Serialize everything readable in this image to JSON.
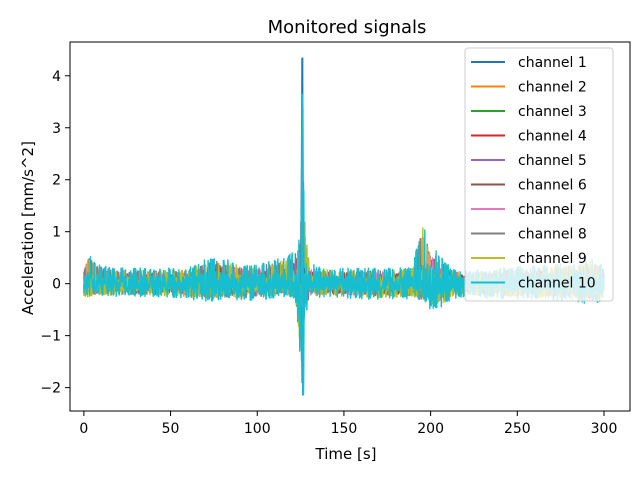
{
  "chart_data": {
    "type": "line",
    "title": "Monitored signals",
    "xlabel": "Time [s]",
    "ylabel": "Acceleration [mm/s^2]",
    "xlim": [
      -8,
      315
    ],
    "ylim": [
      -2.45,
      4.65
    ],
    "x_ticks": [
      0,
      50,
      100,
      150,
      200,
      250,
      300
    ],
    "y_ticks": [
      -2,
      -1,
      0,
      1,
      2,
      3,
      4
    ],
    "grid": false,
    "legend_position": "top-right",
    "series": [
      {
        "name": "channel 1",
        "color": "#1f77b4"
      },
      {
        "name": "channel 2",
        "color": "#ff7f0e"
      },
      {
        "name": "channel 3",
        "color": "#2ca02c"
      },
      {
        "name": "channel 4",
        "color": "#d62728"
      },
      {
        "name": "channel 5",
        "color": "#9467bd"
      },
      {
        "name": "channel 6",
        "color": "#8c564b"
      },
      {
        "name": "channel 7",
        "color": "#e377c2"
      },
      {
        "name": "channel 8",
        "color": "#7f7f7f"
      },
      {
        "name": "channel 9",
        "color": "#bcbd22"
      },
      {
        "name": "channel 10",
        "color": "#17becf"
      }
    ],
    "signal_envelope": [
      {
        "x": 0,
        "y": [
          -0.3,
          0.4
        ]
      },
      {
        "x": 3,
        "y": [
          -0.3,
          0.6
        ]
      },
      {
        "x": 10,
        "y": [
          -0.25,
          0.35
        ]
      },
      {
        "x": 20,
        "y": [
          -0.25,
          0.3
        ]
      },
      {
        "x": 40,
        "y": [
          -0.25,
          0.3
        ]
      },
      {
        "x": 60,
        "y": [
          -0.3,
          0.3
        ]
      },
      {
        "x": 75,
        "y": [
          -0.35,
          0.55
        ]
      },
      {
        "x": 85,
        "y": [
          -0.3,
          0.45
        ]
      },
      {
        "x": 95,
        "y": [
          -0.35,
          0.35
        ]
      },
      {
        "x": 105,
        "y": [
          -0.3,
          0.45
        ]
      },
      {
        "x": 115,
        "y": [
          -0.25,
          0.5
        ]
      },
      {
        "x": 122,
        "y": [
          -0.3,
          0.75
        ]
      },
      {
        "x": 125,
        "y": [
          -1.5,
          1.0
        ]
      },
      {
        "x": 126,
        "y": [
          -2.15,
          4.35
        ]
      },
      {
        "x": 127,
        "y": [
          -0.8,
          1.6
        ]
      },
      {
        "x": 130,
        "y": [
          -0.3,
          0.4
        ]
      },
      {
        "x": 140,
        "y": [
          -0.25,
          0.3
        ]
      },
      {
        "x": 160,
        "y": [
          -0.3,
          0.3
        ]
      },
      {
        "x": 175,
        "y": [
          -0.3,
          0.3
        ]
      },
      {
        "x": 190,
        "y": [
          -0.3,
          0.35
        ]
      },
      {
        "x": 195,
        "y": [
          -0.35,
          1.3
        ]
      },
      {
        "x": 200,
        "y": [
          -0.5,
          0.75
        ]
      },
      {
        "x": 207,
        "y": [
          -0.45,
          0.55
        ]
      },
      {
        "x": 212,
        "y": [
          -0.3,
          0.3
        ]
      },
      {
        "x": 220,
        "y": [
          -0.25,
          0.25
        ]
      },
      {
        "x": 240,
        "y": [
          -0.3,
          0.3
        ]
      },
      {
        "x": 260,
        "y": [
          -0.3,
          0.35
        ]
      },
      {
        "x": 280,
        "y": [
          -0.35,
          0.4
        ]
      },
      {
        "x": 295,
        "y": [
          -0.4,
          0.5
        ]
      },
      {
        "x": 300,
        "y": [
          -0.3,
          0.35
        ]
      }
    ]
  }
}
